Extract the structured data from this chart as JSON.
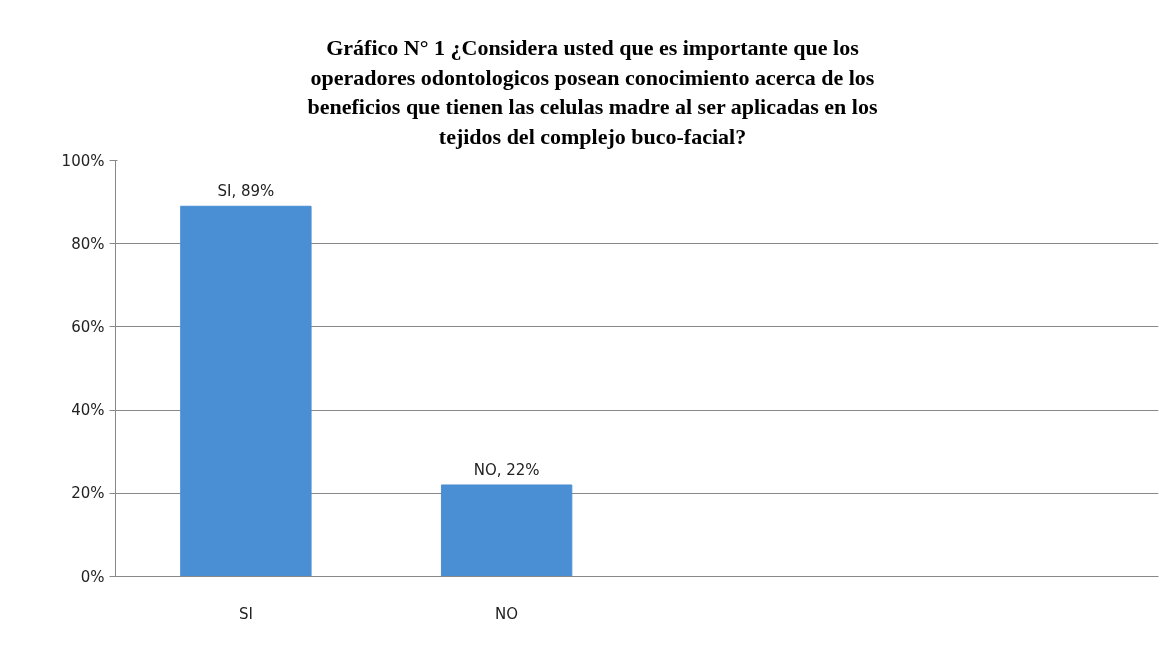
{
  "chart_data": {
    "type": "bar",
    "title": "Gráfico N° 1 ¿Considera usted que es importante que los operadores odontologicos posean conocimiento acerca de los beneficios que tienen las celulas madre al ser aplicadas en los tejidos del complejo buco-facial?",
    "categories": [
      "SI",
      "NO",
      null,
      null
    ],
    "values": [
      89,
      22,
      null,
      null
    ],
    "value_labels": [
      "SI, 89%",
      "NO, 22%",
      null,
      null
    ],
    "color": "#4a8fd4",
    "ylim": [
      0,
      100
    ],
    "yticks": [
      {
        "value": 0,
        "label": "0%"
      },
      {
        "value": 20,
        "label": "20%"
      },
      {
        "value": 40,
        "label": "40%"
      },
      {
        "value": 60,
        "label": "60%"
      },
      {
        "value": 80,
        "label": "80%"
      },
      {
        "value": 100,
        "label": "100%"
      }
    ],
    "grid": "y"
  }
}
